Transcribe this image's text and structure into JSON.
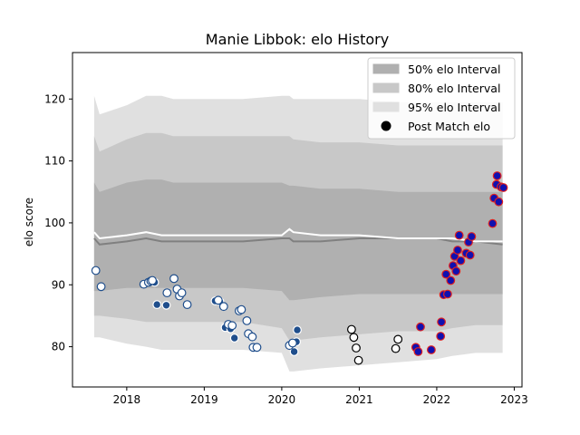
{
  "chart_data": {
    "type": "scatter",
    "title": "Manie Libbok: elo History",
    "xlabel": "",
    "ylabel": "elo score",
    "xlim": [
      2017.3,
      2023.1
    ],
    "ylim": [
      73.5,
      127.5
    ],
    "x_ticks": [
      2018,
      2019,
      2020,
      2021,
      2022,
      2023
    ],
    "x_tick_labels": [
      "2018",
      "2019",
      "2020",
      "2021",
      "2022",
      "2023"
    ],
    "y_ticks": [
      80,
      90,
      100,
      110,
      120
    ],
    "y_tick_labels": [
      "80",
      "90",
      "100",
      "110",
      "120"
    ],
    "grid": false,
    "legend_position": "top-right",
    "legend": [
      {
        "label": "50% elo Interval",
        "kind": "band",
        "color": "#b0b0b0"
      },
      {
        "label": "80% elo Interval",
        "kind": "band",
        "color": "#c8c8c8"
      },
      {
        "label": "95% elo Interval",
        "kind": "band",
        "color": "#e0e0e0"
      },
      {
        "label": "Post Match elo",
        "kind": "marker",
        "color": "#000000"
      }
    ],
    "bands": {
      "x": [
        2017.58,
        2017.65,
        2018.0,
        2018.25,
        2018.45,
        2018.6,
        2019.0,
        2019.5,
        2020.0,
        2020.1,
        2020.15,
        2020.5,
        2021.0,
        2021.5,
        2022.0,
        2022.2,
        2022.5,
        2022.85
      ],
      "band95_upper": [
        120.5,
        117.5,
        119.0,
        120.5,
        120.5,
        120.0,
        120.0,
        120.0,
        120.5,
        120.5,
        120.0,
        120.0,
        120.0,
        119.5,
        119.5,
        119.5,
        119.5,
        119.5
      ],
      "band95_lower": [
        81.5,
        81.5,
        80.5,
        80.0,
        79.5,
        79.5,
        79.5,
        79.5,
        79.0,
        76.0,
        76.0,
        76.5,
        77.0,
        77.5,
        78.0,
        78.5,
        79.0,
        79.0
      ],
      "band80_upper": [
        114.0,
        111.5,
        113.5,
        114.5,
        114.5,
        114.0,
        114.0,
        114.0,
        114.0,
        114.0,
        113.5,
        113.0,
        113.0,
        112.5,
        112.5,
        112.5,
        112.5,
        112.5
      ],
      "band80_lower": [
        85.0,
        85.0,
        84.5,
        84.0,
        84.0,
        84.0,
        84.0,
        84.0,
        83.0,
        81.0,
        81.0,
        81.5,
        82.0,
        82.5,
        82.5,
        83.0,
        83.5,
        83.5
      ],
      "band50_upper": [
        106.5,
        105.0,
        106.5,
        107.0,
        107.0,
        106.5,
        106.5,
        106.5,
        106.5,
        106.0,
        106.0,
        105.5,
        105.5,
        105.0,
        105.0,
        105.0,
        105.0,
        105.0
      ],
      "band50_lower": [
        89.0,
        89.0,
        89.5,
        89.5,
        89.5,
        89.5,
        89.5,
        89.5,
        89.0,
        87.5,
        87.5,
        88.0,
        88.5,
        88.5,
        88.5,
        88.5,
        88.5,
        88.5
      ],
      "mean_line": [
        97.5,
        96.5,
        97.0,
        97.5,
        97.0,
        97.0,
        97.0,
        97.0,
        97.5,
        97.5,
        97.0,
        97.0,
        97.5,
        97.5,
        97.5,
        97.0,
        97.0,
        96.5
      ],
      "median_line": [
        98.5,
        97.5,
        98.0,
        98.5,
        98.0,
        98.0,
        98.0,
        98.0,
        98.0,
        99.0,
        98.5,
        98.0,
        98.0,
        97.5,
        97.5,
        97.5,
        97.0,
        97.0
      ]
    },
    "series": [
      {
        "marker": {
          "fill": "#1f4e8c",
          "edge": "#ffffff"
        },
        "points": [
          [
            2018.36,
            90.4
          ],
          [
            2018.39,
            86.8
          ],
          [
            2018.51,
            86.7
          ],
          [
            2019.14,
            87.4
          ],
          [
            2019.2,
            87.3
          ],
          [
            2019.27,
            83.1
          ],
          [
            2019.34,
            82.9
          ],
          [
            2019.39,
            81.4
          ],
          [
            2020.16,
            79.2
          ],
          [
            2020.19,
            80.8
          ],
          [
            2020.2,
            82.7
          ]
        ]
      },
      {
        "marker": {
          "fill": "#ffffff",
          "edge": "#1f4e8c"
        },
        "points": [
          [
            2017.6,
            92.3
          ],
          [
            2017.67,
            89.7
          ],
          [
            2018.22,
            90.1
          ],
          [
            2018.28,
            90.4
          ],
          [
            2018.31,
            90.6
          ],
          [
            2018.33,
            90.7
          ],
          [
            2018.52,
            88.7
          ],
          [
            2018.61,
            91.0
          ],
          [
            2018.65,
            89.3
          ],
          [
            2018.68,
            88.2
          ],
          [
            2018.71,
            88.7
          ],
          [
            2018.78,
            86.8
          ],
          [
            2019.18,
            87.5
          ],
          [
            2019.25,
            86.5
          ],
          [
            2019.31,
            83.6
          ],
          [
            2019.36,
            83.4
          ],
          [
            2019.45,
            85.8
          ],
          [
            2019.48,
            86.0
          ],
          [
            2019.55,
            84.2
          ],
          [
            2019.57,
            82.1
          ],
          [
            2019.62,
            81.6
          ],
          [
            2019.63,
            79.9
          ],
          [
            2019.68,
            79.9
          ],
          [
            2020.1,
            80.2
          ],
          [
            2020.14,
            80.6
          ]
        ]
      },
      {
        "marker": {
          "fill": "#ffffff",
          "edge": "#000000"
        },
        "points": [
          [
            2020.9,
            82.8
          ],
          [
            2020.93,
            81.5
          ],
          [
            2020.96,
            79.8
          ],
          [
            2020.99,
            77.8
          ],
          [
            2021.47,
            79.7
          ],
          [
            2021.5,
            81.2
          ]
        ]
      },
      {
        "marker": {
          "fill": "#1010b0",
          "edge": "#e02020"
        },
        "points": [
          [
            2021.73,
            79.9
          ],
          [
            2021.76,
            79.2
          ],
          [
            2021.79,
            83.2
          ],
          [
            2021.93,
            79.5
          ],
          [
            2022.05,
            81.7
          ],
          [
            2022.06,
            84.0
          ],
          [
            2022.09,
            88.4
          ],
          [
            2022.12,
            91.7
          ],
          [
            2022.14,
            88.5
          ],
          [
            2022.18,
            90.7
          ],
          [
            2022.21,
            93.1
          ],
          [
            2022.23,
            94.6
          ],
          [
            2022.25,
            92.2
          ],
          [
            2022.27,
            95.6
          ],
          [
            2022.29,
            98.0
          ],
          [
            2022.31,
            93.9
          ],
          [
            2022.38,
            95.1
          ],
          [
            2022.41,
            96.9
          ],
          [
            2022.43,
            94.8
          ],
          [
            2022.45,
            97.8
          ],
          [
            2022.72,
            99.9
          ],
          [
            2022.74,
            104.0
          ],
          [
            2022.77,
            106.2
          ],
          [
            2022.78,
            107.6
          ],
          [
            2022.8,
            103.4
          ],
          [
            2022.83,
            105.8
          ],
          [
            2022.86,
            105.7
          ]
        ]
      }
    ]
  }
}
